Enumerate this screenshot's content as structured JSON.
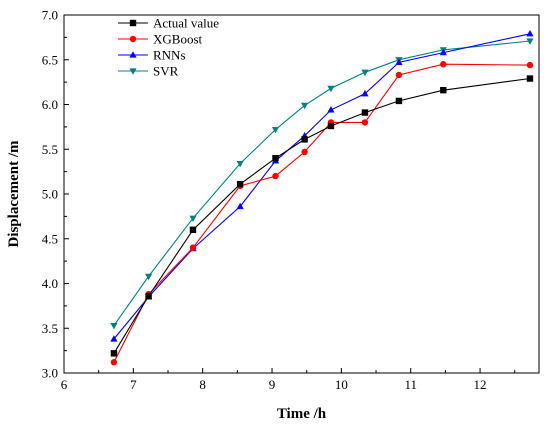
{
  "chart_data": {
    "type": "line",
    "xlabel": "Time /h",
    "ylabel": "Displacement /m",
    "xlim": [
      6,
      12.85
    ],
    "ylim": [
      3.0,
      7.0
    ],
    "xticks": [
      "6",
      "7",
      "8",
      "9",
      "10",
      "11",
      "12"
    ],
    "xtick_values": [
      6,
      7,
      8,
      9,
      10,
      11,
      12
    ],
    "yticks": [
      "3.0",
      "3.5",
      "4.0",
      "4.5",
      "5.0",
      "5.5",
      "6.0",
      "6.5",
      "7.0"
    ],
    "ytick_values": [
      3.0,
      3.5,
      4.0,
      4.5,
      5.0,
      5.5,
      6.0,
      6.5,
      7.0
    ],
    "grid": false,
    "legend": "top-left",
    "series": [
      {
        "name": "Actual value",
        "color": "#000000",
        "marker": "square",
        "x": [
          6.72,
          7.22,
          7.86,
          8.54,
          9.05,
          9.47,
          9.85,
          10.34,
          10.83,
          11.47,
          12.72
        ],
        "y": [
          3.22,
          3.86,
          4.6,
          5.11,
          5.4,
          5.61,
          5.76,
          5.91,
          6.04,
          6.16,
          6.29
        ]
      },
      {
        "name": "XGBoost",
        "color": "#ff0000",
        "marker": "circle",
        "x": [
          6.72,
          7.22,
          7.86,
          8.54,
          9.05,
          9.47,
          9.85,
          10.34,
          10.83,
          11.47,
          12.72
        ],
        "y": [
          3.12,
          3.88,
          4.4,
          5.09,
          5.2,
          5.47,
          5.8,
          5.8,
          6.33,
          6.45,
          6.44
        ]
      },
      {
        "name": "RNNs",
        "color": "#0000ff",
        "marker": "triangle-up",
        "x": [
          6.72,
          7.22,
          7.86,
          8.54,
          9.05,
          9.47,
          9.85,
          10.34,
          10.83,
          11.47,
          12.72
        ],
        "y": [
          3.38,
          3.85,
          4.39,
          4.86,
          5.37,
          5.65,
          5.94,
          6.12,
          6.47,
          6.58,
          6.79
        ]
      },
      {
        "name": "SVR",
        "color": "#008080",
        "marker": "triangle-down",
        "x": [
          6.72,
          7.22,
          7.86,
          8.54,
          9.05,
          9.47,
          9.85,
          10.34,
          10.83,
          11.47,
          12.72
        ],
        "y": [
          3.53,
          4.08,
          4.73,
          5.34,
          5.72,
          5.99,
          6.18,
          6.36,
          6.5,
          6.61,
          6.71
        ]
      }
    ]
  }
}
